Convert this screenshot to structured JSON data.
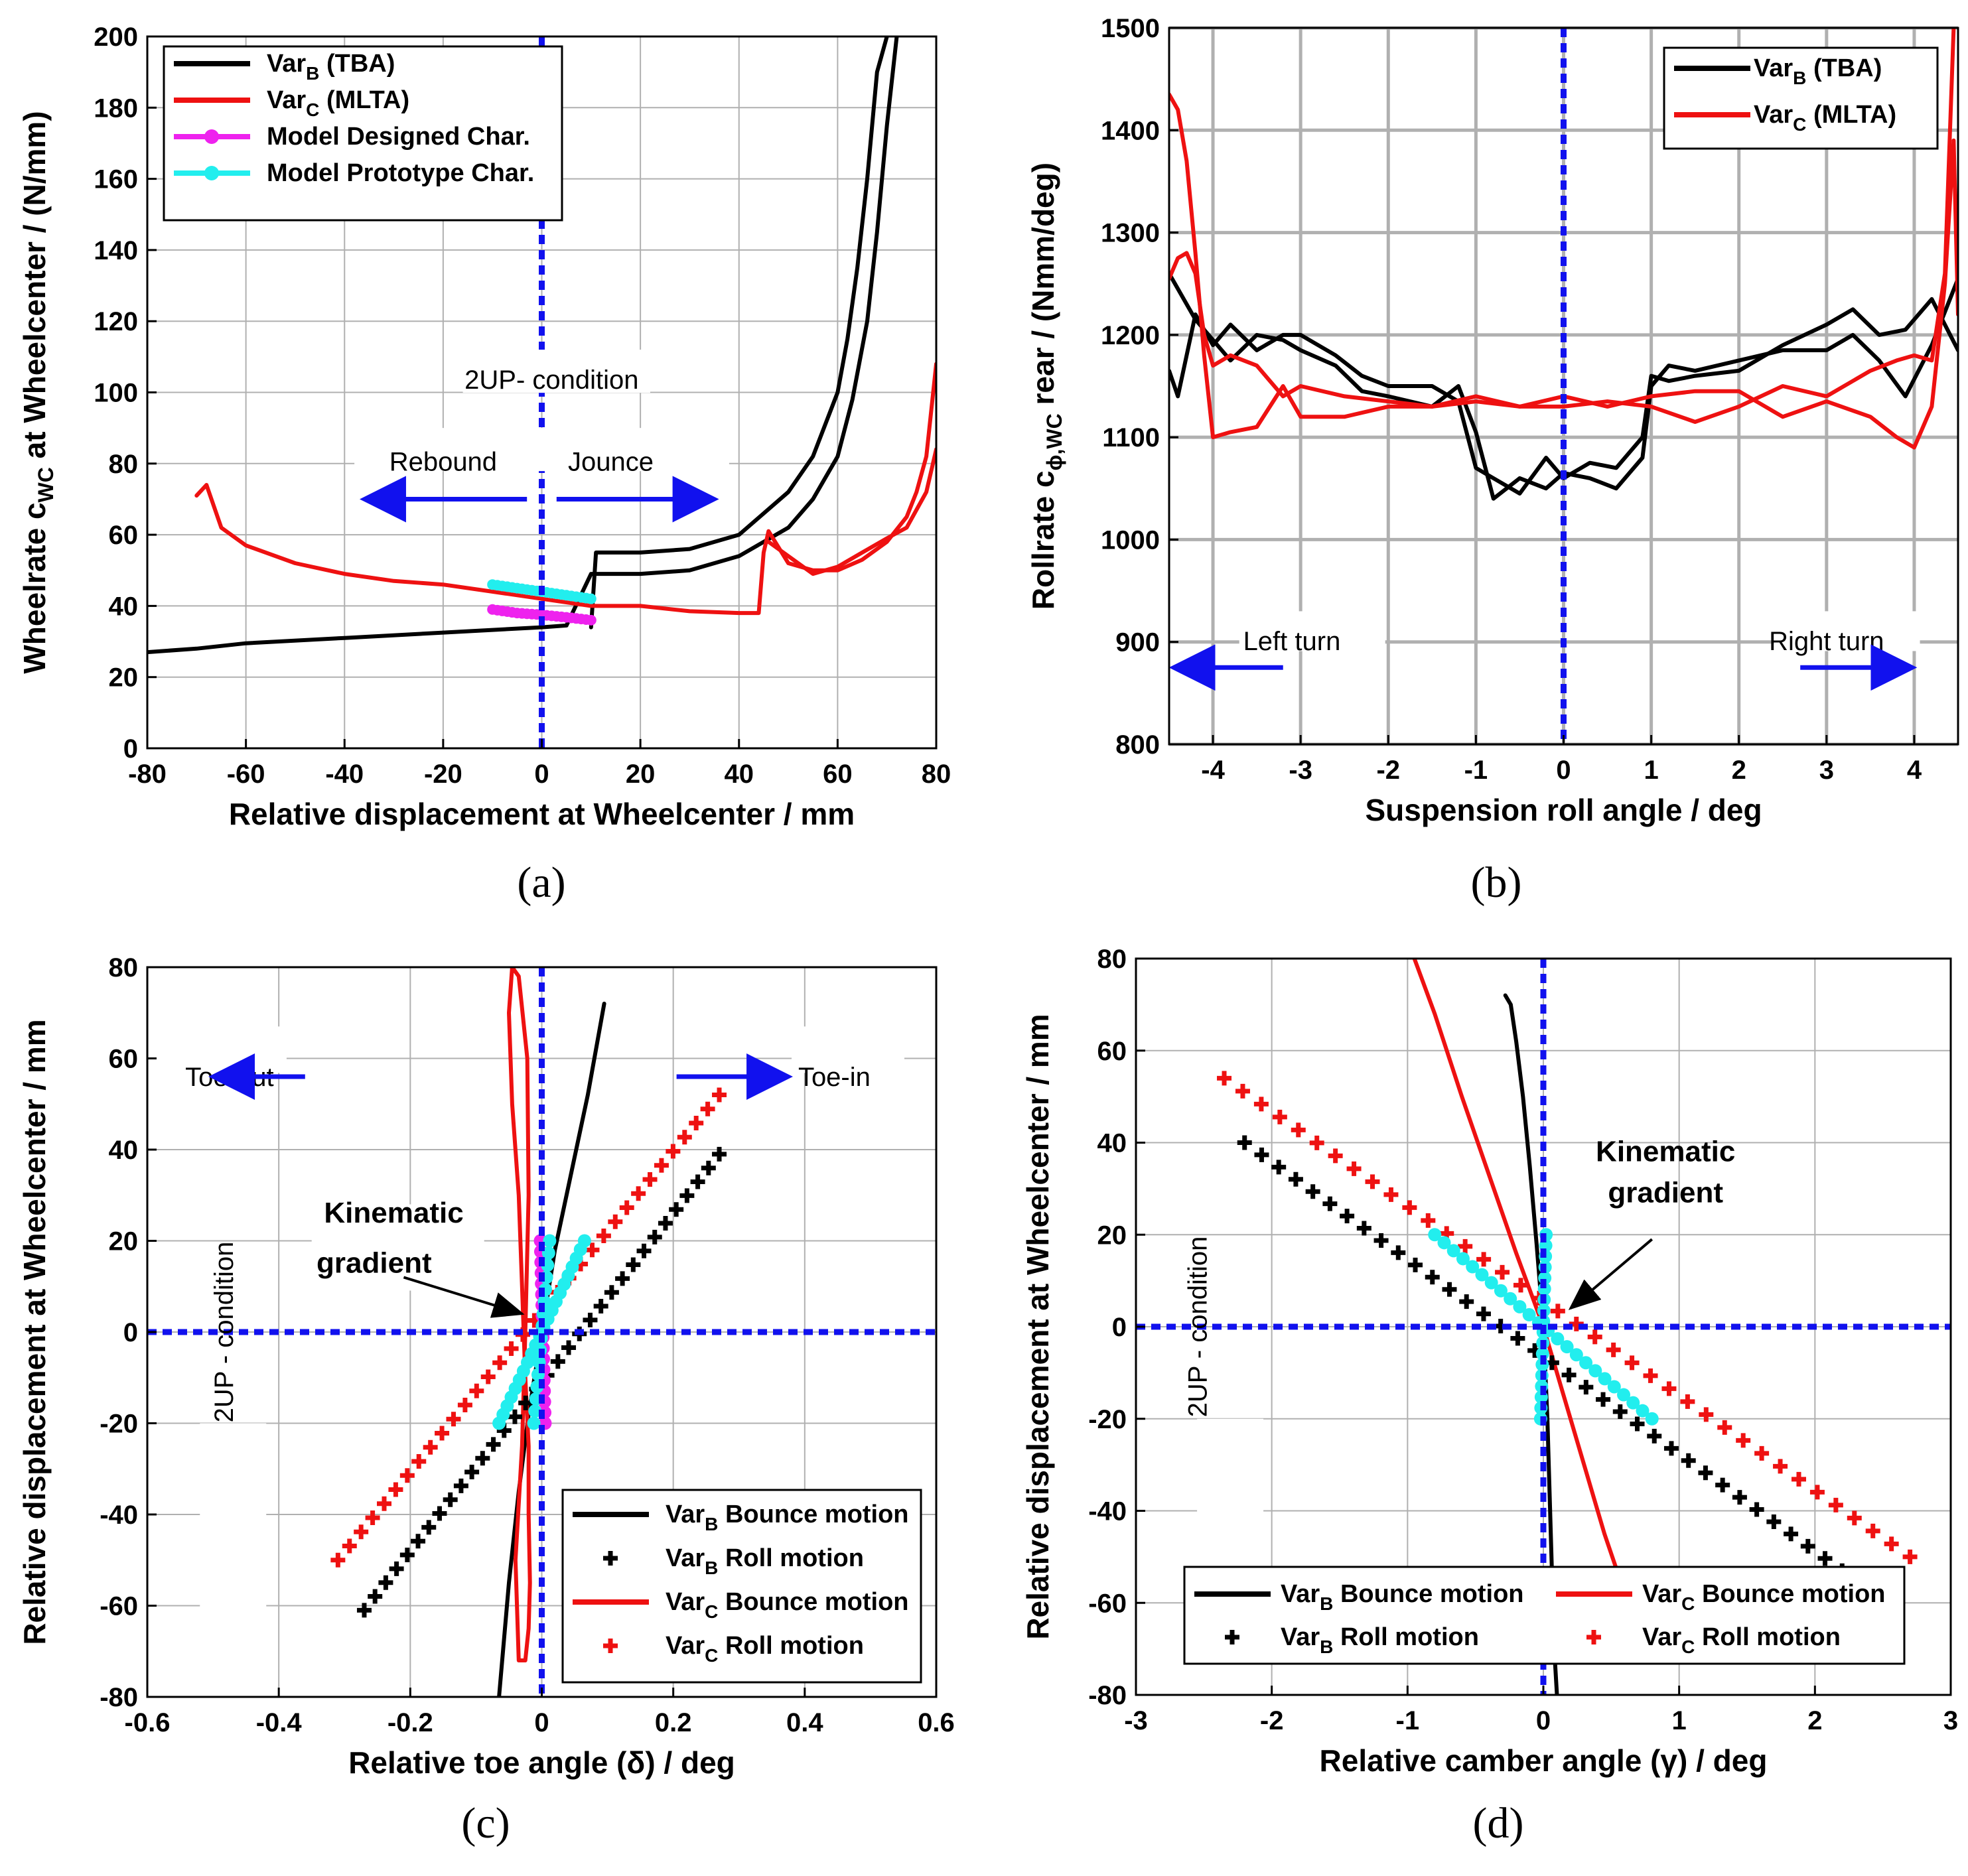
{
  "figure": {
    "charts": [
      {
        "id": "a",
        "caption": "(a)"
      },
      {
        "id": "b",
        "caption": "(b)"
      },
      {
        "id": "c",
        "caption": "(c)"
      },
      {
        "id": "d",
        "caption": "(d)"
      }
    ]
  },
  "colors": {
    "black": "#000000",
    "red": "#ee1111",
    "magenta": "#ee22ee",
    "cyan": "#22eeee",
    "blue": "#1111ee",
    "grid": "#b0b0b0"
  },
  "chart_data": [
    {
      "id": "a",
      "type": "line",
      "caption": "(a)",
      "xlabel": "Relative displacement at Wheelcenter / mm",
      "ylabel_main": "Wheelrate c",
      "ylabel_sub": "WC",
      "ylabel_rest": " at Wheelcenter / (N/mm)",
      "xlim": [
        -80,
        80
      ],
      "ylim": [
        0,
        200
      ],
      "xticks": [
        -80,
        -60,
        -40,
        -20,
        0,
        20,
        40,
        60,
        80
      ],
      "yticks": [
        0,
        20,
        40,
        60,
        80,
        100,
        120,
        140,
        160,
        180,
        200
      ],
      "legend": [
        {
          "base": "Var",
          "sub": "B",
          "rest": " (TBA)",
          "color": "#000000",
          "marker": "line"
        },
        {
          "base": "Var",
          "sub": "C",
          "rest": " (MLTA)",
          "color": "#ee1111",
          "marker": "line"
        },
        {
          "base": "Model Designed Char.",
          "sub": "",
          "rest": "",
          "color": "#ee22ee",
          "marker": "line-dot"
        },
        {
          "base": "Model Prototype Char.",
          "sub": "",
          "rest": "",
          "color": "#22eeee",
          "marker": "line-dot"
        }
      ],
      "annotations": {
        "condition": "2UP- condition",
        "left": "Rebound",
        "right": "Jounce"
      },
      "series": [
        {
          "name": "Var_B (TBA) lower",
          "color": "#000000",
          "x": [
            -80,
            -70,
            -60,
            -40,
            -20,
            0,
            5,
            10,
            20,
            30,
            40,
            50,
            55,
            60,
            63,
            66,
            68,
            70,
            72
          ],
          "y": [
            27,
            28,
            29.5,
            31,
            32.5,
            34,
            34.5,
            49,
            49,
            50,
            54,
            62,
            70,
            82,
            98,
            120,
            145,
            175,
            200
          ]
        },
        {
          "name": "Var_B (TBA) upper",
          "color": "#000000",
          "x": [
            10,
            11,
            20,
            30,
            40,
            50,
            55,
            60,
            62,
            64,
            66,
            68,
            70
          ],
          "y": [
            34,
            55,
            55,
            56,
            60,
            72,
            82,
            100,
            115,
            135,
            160,
            190,
            200
          ]
        },
        {
          "name": "Var_C (MLTA)",
          "color": "#ee1111",
          "x": [
            -70,
            -68,
            -65,
            -60,
            -50,
            -40,
            -30,
            -20,
            -10,
            0,
            10,
            20,
            30,
            40,
            44,
            45,
            46,
            50,
            55,
            60,
            65,
            70,
            74,
            76,
            78,
            80
          ],
          "y": [
            71,
            74,
            62,
            57,
            52,
            49,
            47,
            46,
            44,
            42,
            40,
            40,
            38.5,
            38,
            38,
            55,
            61,
            52,
            50,
            50,
            53,
            58,
            65,
            72,
            82,
            108
          ]
        },
        {
          "name": "Var_C (MLTA) return",
          "color": "#ee1111",
          "x": [
            46,
            50,
            55,
            60,
            65,
            70,
            74,
            78,
            80
          ],
          "y": [
            58,
            54,
            49,
            51,
            55,
            59,
            62,
            72,
            84
          ]
        },
        {
          "name": "Model Designed Char.",
          "color": "#ee22ee",
          "x": [
            -10,
            -5,
            0,
            5,
            10
          ],
          "y": [
            39,
            38,
            37.5,
            36.8,
            36
          ]
        },
        {
          "name": "Model Prototype Char.",
          "color": "#22eeee",
          "x": [
            -10,
            -5,
            0,
            5,
            10
          ],
          "y": [
            46,
            45,
            44,
            43,
            42
          ]
        }
      ]
    },
    {
      "id": "b",
      "type": "line",
      "caption": "(b)",
      "xlabel": "Suspension roll angle / deg",
      "ylabel_main": "Rollrate c",
      "ylabel_sub": "ϕ,WC",
      "ylabel_rest": " rear / (Nmm/deg)",
      "xlim": [
        -4.5,
        4.5
      ],
      "ylim": [
        800,
        1500
      ],
      "xticks": [
        -4,
        -3,
        -2,
        -1,
        0,
        1,
        2,
        3,
        4
      ],
      "yticks": [
        800,
        900,
        1000,
        1100,
        1200,
        1300,
        1400,
        1500
      ],
      "legend": [
        {
          "base": "Var",
          "sub": "B",
          "rest": " (TBA)",
          "color": "#000000",
          "marker": "line"
        },
        {
          "base": "Var",
          "sub": "C",
          "rest": " (MLTA)",
          "color": "#ee1111",
          "marker": "line"
        }
      ],
      "annotations": {
        "left": "Left turn",
        "right": "Right turn"
      },
      "series": [
        {
          "name": "Var_B (TBA) 1",
          "color": "#000000",
          "x": [
            -4.5,
            -4.4,
            -4.2,
            -4,
            -3.8,
            -3.5,
            -3.2,
            -3,
            -2.6,
            -2.3,
            -2,
            -1.5,
            -1.2,
            -1,
            -0.8,
            -0.5,
            -0.2,
            0,
            0.3,
            0.6,
            0.9,
            1.0,
            1.2,
            1.5,
            2,
            2.5,
            3,
            3.3,
            3.6,
            3.9,
            4.2,
            4.5
          ],
          "y": [
            1260,
            1245,
            1215,
            1195,
            1175,
            1200,
            1195,
            1185,
            1170,
            1145,
            1140,
            1130,
            1150,
            1105,
            1040,
            1060,
            1050,
            1065,
            1060,
            1050,
            1080,
            1150,
            1170,
            1165,
            1175,
            1185,
            1185,
            1200,
            1175,
            1140,
            1190,
            1255
          ]
        },
        {
          "name": "Var_B (TBA) 2",
          "color": "#000000",
          "x": [
            -4.5,
            -4.4,
            -4.2,
            -4,
            -3.8,
            -3.5,
            -3.2,
            -3,
            -2.6,
            -2.3,
            -2,
            -1.5,
            -1.2,
            -1,
            -0.8,
            -0.5,
            -0.2,
            0,
            0.3,
            0.6,
            0.9,
            1.0,
            1.2,
            1.5,
            2,
            2.5,
            3,
            3.3,
            3.6,
            3.9,
            4.2,
            4.5
          ],
          "y": [
            1165,
            1140,
            1220,
            1190,
            1210,
            1185,
            1200,
            1200,
            1180,
            1160,
            1150,
            1150,
            1135,
            1070,
            1060,
            1045,
            1080,
            1060,
            1075,
            1070,
            1100,
            1160,
            1155,
            1160,
            1165,
            1190,
            1210,
            1225,
            1200,
            1205,
            1235,
            1185
          ]
        },
        {
          "name": "Var_C (MLTA) 1",
          "color": "#ee1111",
          "x": [
            -4.5,
            -4.4,
            -4.3,
            -4.2,
            -4.1,
            -4,
            -3.8,
            -3.5,
            -3.2,
            -3,
            -2.5,
            -2,
            -1.5,
            -1,
            -0.5,
            0,
            0.5,
            1,
            1.5,
            2,
            2.5,
            3,
            3.5,
            3.8,
            4.0,
            4.2,
            4.35,
            4.45
          ],
          "y": [
            1435,
            1420,
            1370,
            1280,
            1180,
            1100,
            1105,
            1110,
            1150,
            1120,
            1120,
            1130,
            1130,
            1135,
            1130,
            1130,
            1135,
            1130,
            1115,
            1130,
            1150,
            1140,
            1165,
            1175,
            1180,
            1175,
            1260,
            1500
          ]
        },
        {
          "name": "Var_C (MLTA) 2",
          "color": "#ee1111",
          "x": [
            -4.5,
            -4.4,
            -4.3,
            -4.2,
            -4.1,
            -4,
            -3.8,
            -3.5,
            -3.2,
            -3,
            -2.5,
            -2,
            -1.5,
            -1,
            -0.5,
            0,
            0.5,
            1,
            1.5,
            2,
            2.5,
            3,
            3.5,
            3.8,
            4.0,
            4.2,
            4.35,
            4.45,
            4.5
          ],
          "y": [
            1255,
            1275,
            1280,
            1260,
            1200,
            1170,
            1180,
            1170,
            1140,
            1150,
            1140,
            1135,
            1130,
            1140,
            1130,
            1140,
            1130,
            1140,
            1145,
            1145,
            1120,
            1135,
            1120,
            1100,
            1090,
            1130,
            1250,
            1390,
            1220
          ]
        }
      ]
    },
    {
      "id": "c",
      "type": "line",
      "caption": "(c)",
      "xlabel": "Relative toe angle (δ) / deg",
      "ylabel_main": "Relative displacement at Wheelcenter / mm",
      "ylabel_sub": "",
      "ylabel_rest": "",
      "xlim": [
        -0.6,
        0.6
      ],
      "ylim": [
        -80,
        80
      ],
      "xticks": [
        -0.6,
        -0.4,
        -0.2,
        0,
        0.2,
        0.4,
        0.6
      ],
      "yticks": [
        -80,
        -60,
        -40,
        -20,
        0,
        20,
        40,
        60,
        80
      ],
      "legend": [
        {
          "base": "Var",
          "sub": "B",
          "rest": " Bounce motion",
          "color": "#000000",
          "marker": "line"
        },
        {
          "base": "Var",
          "sub": "B",
          "rest": " Roll motion",
          "color": "#000000",
          "marker": "plus"
        },
        {
          "base": "Var",
          "sub": "C",
          "rest": " Bounce motion",
          "color": "#ee1111",
          "marker": "line"
        },
        {
          "base": "Var",
          "sub": "C",
          "rest": " Roll motion",
          "color": "#ee1111",
          "marker": "plus"
        }
      ],
      "annotations": {
        "condition": "2UP - condition",
        "left": "Toe-out",
        "right": "Toe-in",
        "kinematic": [
          "Kinematic",
          "gradient"
        ]
      },
      "series": [
        {
          "name": "Var_B Bounce motion",
          "color": "#000000",
          "style": "line",
          "x": [
            -0.065,
            -0.05,
            -0.035,
            -0.02,
            0,
            0.02,
            0.045,
            0.07,
            0.095
          ],
          "y": [
            -80,
            -55,
            -35,
            -18,
            0,
            18,
            35,
            52,
            72
          ]
        },
        {
          "name": "Var_C Bounce motion",
          "color": "#ee1111",
          "style": "line",
          "x": [
            -0.035,
            -0.04,
            -0.03,
            -0.025,
            -0.02,
            -0.022,
            -0.035,
            -0.045,
            -0.05,
            -0.045,
            -0.035,
            -0.03,
            -0.025,
            -0.02,
            -0.02,
            -0.018,
            -0.02,
            -0.025,
            -0.035
          ],
          "y": [
            -72,
            -50,
            -25,
            0,
            30,
            60,
            78,
            80,
            70,
            50,
            30,
            10,
            -10,
            -25,
            -40,
            -55,
            -65,
            -72,
            -72
          ]
        },
        {
          "name": "Var_B Roll motion",
          "color": "#000000",
          "style": "plus",
          "x0": -0.27,
          "y0": -61,
          "x1": 0.27,
          "y1": 39,
          "n": 34
        },
        {
          "name": "Var_C Roll motion",
          "color": "#ee1111",
          "style": "plus",
          "x0": -0.31,
          "y0": -50,
          "x1": 0.27,
          "y1": 52,
          "n": 34
        },
        {
          "name": "Model Designed Char.",
          "color": "#ee22ee",
          "style": "dots",
          "x0": 0.005,
          "y0": -20,
          "x1": -0.002,
          "y1": 20,
          "n": 18
        },
        {
          "name": "Model Prototype Char.",
          "color": "#22eeee",
          "style": "dots",
          "x0": -0.065,
          "y0": -20,
          "x1": 0.065,
          "y1": 20,
          "n": 22
        },
        {
          "name": "Model Prototype Char. vertical",
          "color": "#22eeee",
          "style": "dots",
          "x0": -0.012,
          "y0": -20,
          "x1": 0.012,
          "y1": 20,
          "n": 16
        }
      ]
    },
    {
      "id": "d",
      "type": "line",
      "caption": "(d)",
      "xlabel": "Relative camber angle (γ) / deg",
      "ylabel_main": "Relative displacement at Wheelcenter / mm",
      "ylabel_sub": "",
      "ylabel_rest": "",
      "xlim": [
        -3,
        3
      ],
      "ylim": [
        -80,
        80
      ],
      "xticks": [
        -3,
        -2,
        -1,
        0,
        1,
        2,
        3
      ],
      "yticks": [
        -80,
        -60,
        -40,
        -20,
        0,
        20,
        40,
        60,
        80
      ],
      "legend": [
        {
          "base": "Var",
          "sub": "B",
          "rest": " Bounce motion",
          "color": "#000000",
          "marker": "line"
        },
        {
          "base": "Var",
          "sub": "C",
          "rest": " Bounce motion",
          "color": "#ee1111",
          "marker": "line"
        },
        {
          "base": "Var",
          "sub": "B",
          "rest": " Roll motion",
          "color": "#000000",
          "marker": "plus"
        },
        {
          "base": "Var",
          "sub": "C",
          "rest": " Roll motion",
          "color": "#ee1111",
          "marker": "plus"
        }
      ],
      "annotations": {
        "condition": "2UP - condition",
        "kinematic": [
          "Kinematic",
          "gradient"
        ]
      },
      "series": [
        {
          "name": "Var_B Bounce motion",
          "color": "#000000",
          "style": "line",
          "x": [
            -0.28,
            -0.24,
            -0.2,
            -0.15,
            -0.1,
            -0.05,
            0,
            0.03,
            0.05,
            0.07,
            0.08,
            0.1
          ],
          "y": [
            72,
            70,
            62,
            50,
            35,
            18,
            0,
            -20,
            -40,
            -60,
            -70,
            -80
          ]
        },
        {
          "name": "Var_C Bounce motion",
          "color": "#ee1111",
          "style": "line",
          "x": [
            -0.95,
            -0.8,
            -0.6,
            -0.4,
            -0.2,
            0,
            0.15,
            0.3,
            0.45,
            0.6,
            0.75
          ],
          "y": [
            80,
            68,
            50,
            33,
            16,
            0,
            -15,
            -30,
            -45,
            -58,
            -72
          ]
        },
        {
          "name": "Var_B Roll motion",
          "color": "#000000",
          "style": "plus",
          "x0": -2.2,
          "y0": 40,
          "x1": 2.2,
          "y1": -53,
          "n": 36
        },
        {
          "name": "Var_C Roll motion",
          "color": "#ee1111",
          "style": "plus",
          "x0": -2.35,
          "y0": 54,
          "x1": 2.7,
          "y1": -50,
          "n": 38
        },
        {
          "name": "Model Prototype Char.",
          "color": "#22eeee",
          "style": "dots",
          "x0": -0.8,
          "y0": 20,
          "x1": 0.8,
          "y1": -20,
          "n": 24
        },
        {
          "name": "Model Prototype Char. vertical",
          "color": "#22eeee",
          "style": "dots",
          "x0": -0.02,
          "y0": -20,
          "x1": 0.02,
          "y1": 20,
          "n": 18
        }
      ]
    }
  ]
}
